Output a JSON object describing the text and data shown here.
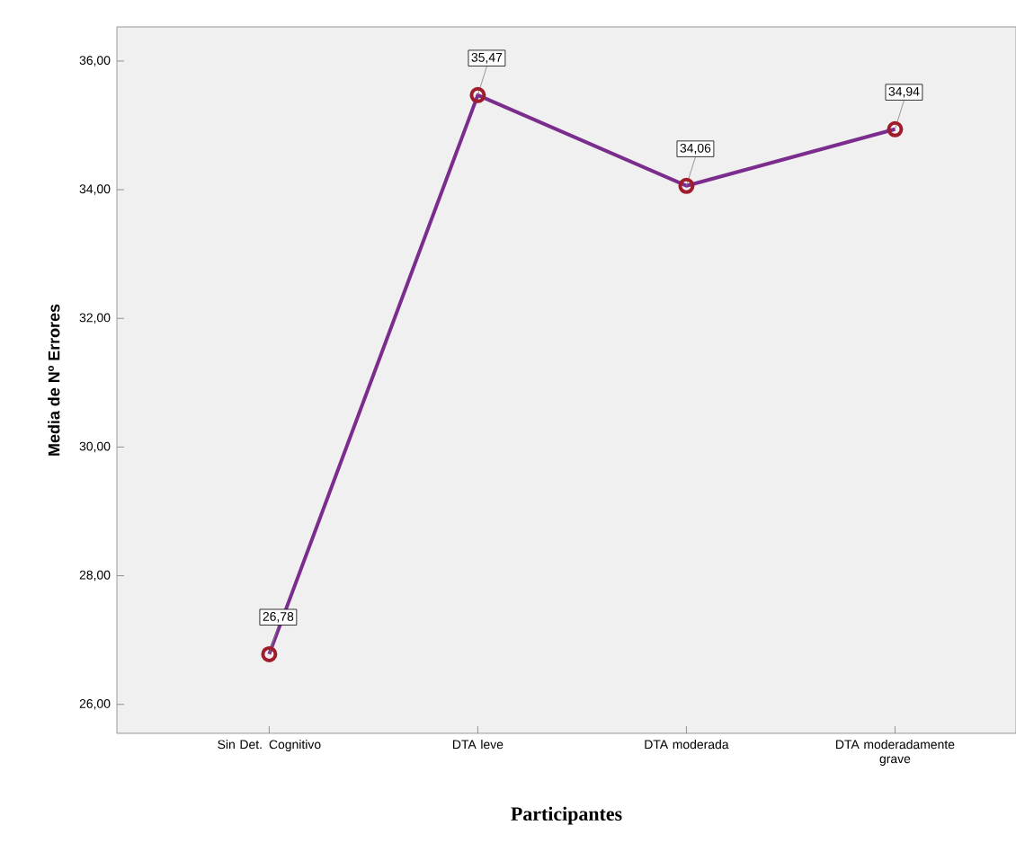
{
  "chart_data": {
    "type": "line",
    "xlabel": "Participantes",
    "ylabel": "Media de Nº Errores",
    "categories": [
      "Sin Det. Cognitivo",
      "DTA leve",
      "DTA moderada",
      "DTA moderadamente grave"
    ],
    "values": [
      26.78,
      35.47,
      34.06,
      34.94
    ],
    "value_labels": [
      "26,78",
      "35,47",
      "34,06",
      "34,94"
    ],
    "color": "#7b2d8e",
    "marker": "circle",
    "line_style": "solid",
    "grid": false,
    "ylim": [
      25.55,
      36.53
    ],
    "yticks": [
      {
        "value": 26,
        "label": "26,00"
      },
      {
        "value": 28,
        "label": "28,00"
      },
      {
        "value": 30,
        "label": "30,00"
      },
      {
        "value": 32,
        "label": "32,00"
      },
      {
        "value": 34,
        "label": "34,00"
      },
      {
        "value": 36,
        "label": "36,00"
      }
    ]
  }
}
